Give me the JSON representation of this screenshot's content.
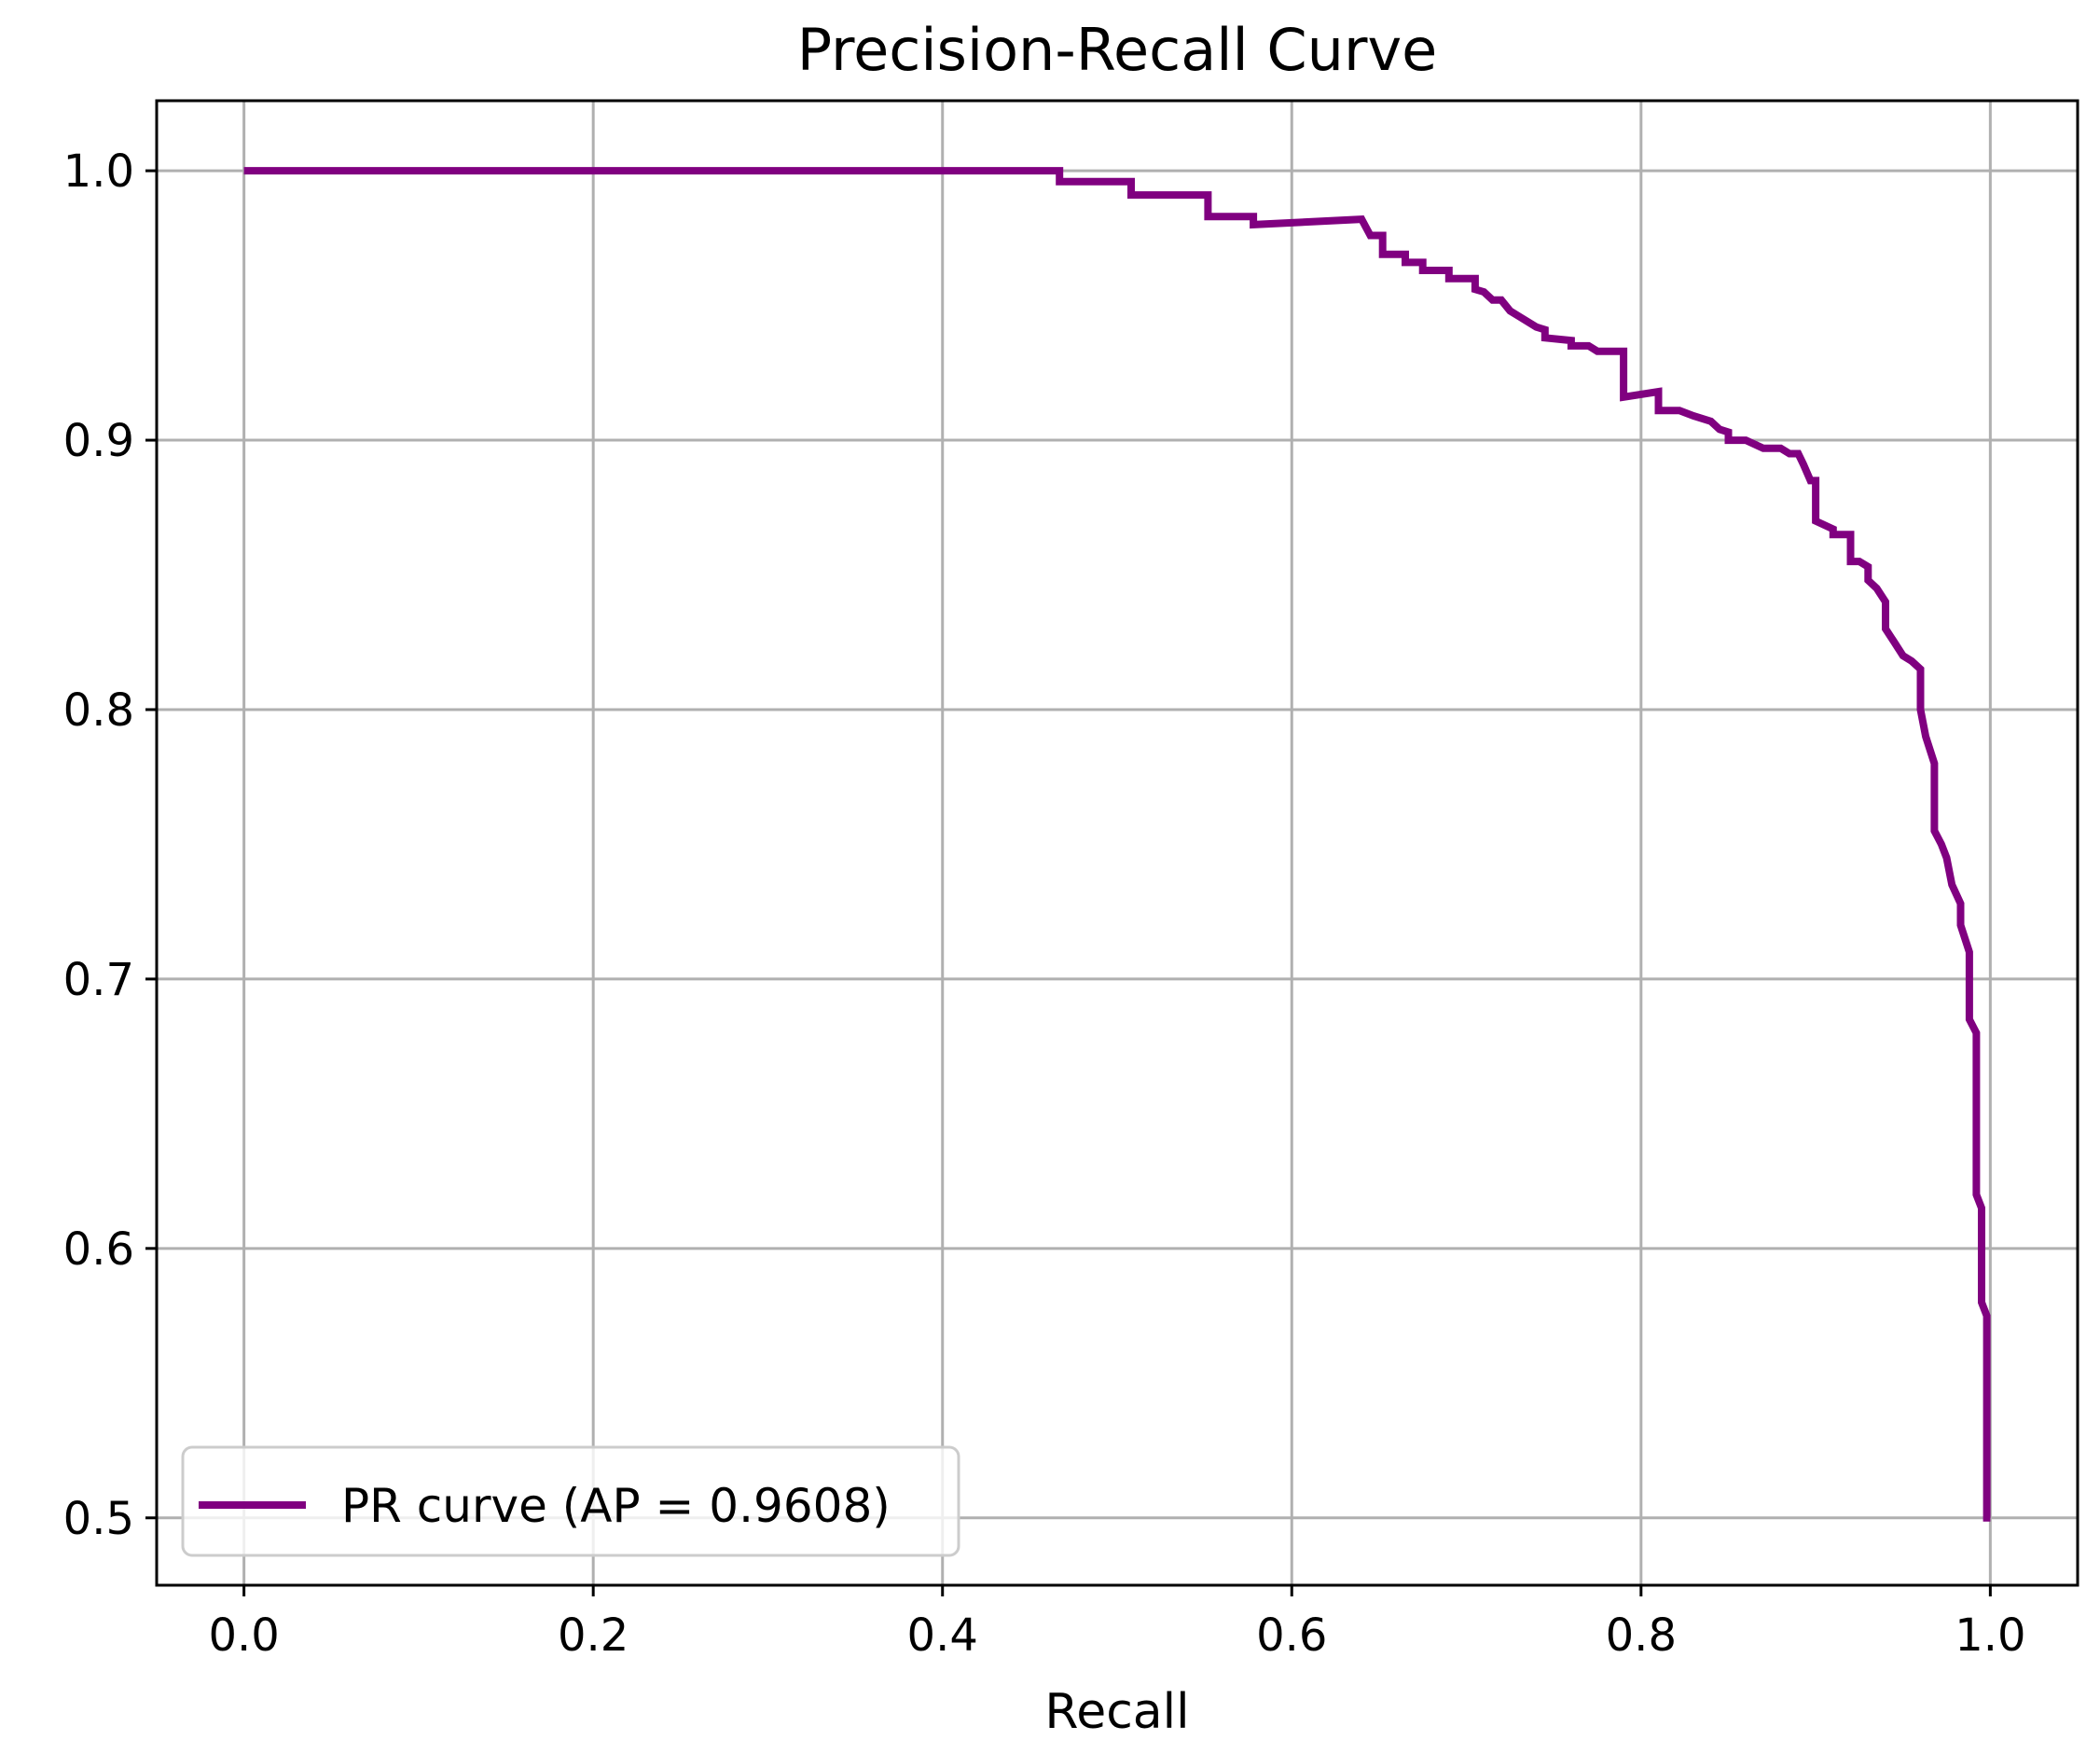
{
  "chart_data": {
    "type": "line",
    "title": "Precision-Recall Curve",
    "xlabel": "Recall",
    "ylabel": "",
    "xlim": [
      -0.05,
      1.05
    ],
    "ylim": [
      0.475,
      1.026
    ],
    "xticks": [
      0.0,
      0.2,
      0.4,
      0.6,
      0.8,
      1.0
    ],
    "xtick_labels": [
      "0.0",
      "0.2",
      "0.4",
      "0.6",
      "0.8",
      "1.0"
    ],
    "yticks": [
      0.5,
      0.6,
      0.7,
      0.8,
      0.9,
      1.0
    ],
    "ytick_labels": [
      "0.5",
      "0.6",
      "0.7",
      "0.8",
      "0.9",
      "1.0"
    ],
    "grid": true,
    "legend_position": "lower-left",
    "series": [
      {
        "name": "PR curve (AP = 0.9608)",
        "color": "#800080",
        "x": [
          0.0,
          0.467,
          0.467,
          0.508,
          0.508,
          0.552,
          0.552,
          0.578,
          0.578,
          0.64,
          0.645,
          0.652,
          0.652,
          0.665,
          0.665,
          0.675,
          0.675,
          0.69,
          0.69,
          0.705,
          0.705,
          0.71,
          0.715,
          0.72,
          0.725,
          0.73,
          0.74,
          0.745,
          0.745,
          0.76,
          0.76,
          0.77,
          0.775,
          0.79,
          0.79,
          0.81,
          0.81,
          0.822,
          0.83,
          0.84,
          0.845,
          0.85,
          0.85,
          0.86,
          0.87,
          0.88,
          0.885,
          0.89,
          0.893,
          0.897,
          0.9,
          0.9,
          0.91,
          0.91,
          0.92,
          0.92,
          0.925,
          0.93,
          0.93,
          0.935,
          0.94,
          0.94,
          0.945,
          0.95,
          0.955,
          0.96,
          0.96,
          0.963,
          0.968,
          0.968,
          0.972,
          0.975,
          0.978,
          0.983,
          0.983,
          0.988,
          0.988,
          0.992,
          0.992,
          0.995,
          0.995,
          0.998,
          0.998,
          1.0
        ],
        "y": [
          1.0,
          1.0,
          0.996,
          0.996,
          0.991,
          0.991,
          0.983,
          0.983,
          0.98,
          0.982,
          0.976,
          0.976,
          0.969,
          0.969,
          0.966,
          0.966,
          0.963,
          0.963,
          0.96,
          0.96,
          0.956,
          0.955,
          0.952,
          0.952,
          0.948,
          0.946,
          0.942,
          0.941,
          0.938,
          0.937,
          0.935,
          0.935,
          0.933,
          0.933,
          0.916,
          0.918,
          0.911,
          0.911,
          0.909,
          0.907,
          0.904,
          0.903,
          0.9,
          0.9,
          0.897,
          0.897,
          0.895,
          0.895,
          0.891,
          0.885,
          0.885,
          0.87,
          0.867,
          0.865,
          0.865,
          0.855,
          0.855,
          0.853,
          0.848,
          0.845,
          0.84,
          0.83,
          0.825,
          0.82,
          0.818,
          0.815,
          0.8,
          0.79,
          0.78,
          0.755,
          0.75,
          0.745,
          0.735,
          0.728,
          0.72,
          0.71,
          0.685,
          0.68,
          0.62,
          0.615,
          0.58,
          0.575,
          0.5,
          0.5
        ]
      }
    ]
  }
}
